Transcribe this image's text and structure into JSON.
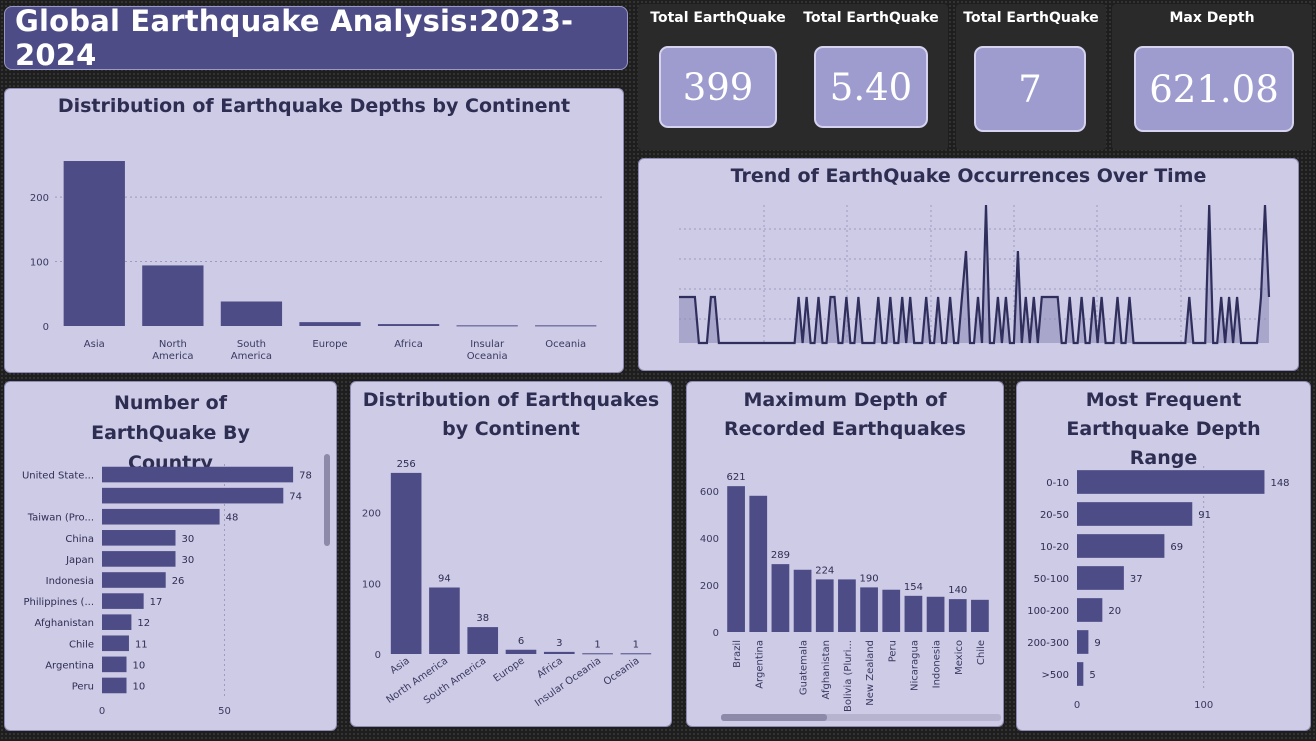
{
  "header": {
    "title": "Global Earthquake Analysis:2023-2024"
  },
  "kpis": [
    {
      "label": "Total EarthQuake",
      "value": "399"
    },
    {
      "label": "Total EarthQuake",
      "value": "5.40"
    },
    {
      "label": "Total EarthQuake",
      "value": "7"
    },
    {
      "label": "Max Depth",
      "value": "621.08"
    }
  ],
  "colors": {
    "bar": "#4d4c86",
    "panel": "#cdcbe6",
    "title": "#2e2d52"
  },
  "chart_data": [
    {
      "id": "depth_by_continent",
      "type": "bar",
      "title": "Distribution of Earthquake Depths by Continent",
      "categories": [
        "Asia",
        "North America",
        "South America",
        "Europe",
        "Africa",
        "Insular Oceania",
        "Oceania"
      ],
      "values": [
        256,
        94,
        38,
        6,
        3,
        1,
        1
      ],
      "ylim": [
        0,
        270
      ],
      "yticks": [
        0,
        100,
        200
      ],
      "grid": true
    },
    {
      "id": "trend_over_time",
      "type": "area",
      "title": "Trend of EarthQuake Occurrences Over Time",
      "values": [
        1,
        1,
        1,
        1,
        1,
        0,
        0,
        0,
        1,
        1,
        0,
        0,
        0,
        0,
        0,
        0,
        0,
        0,
        0,
        0,
        0,
        0,
        0,
        0,
        0,
        0,
        0,
        0,
        0,
        0,
        1,
        0,
        1,
        0,
        0,
        1,
        0,
        0,
        1,
        1,
        0,
        0,
        1,
        0,
        0,
        1,
        0,
        0,
        0,
        0,
        1,
        0,
        0,
        1,
        0,
        0,
        1,
        0,
        1,
        0,
        0,
        0,
        1,
        0,
        0,
        1,
        0,
        0,
        1,
        0,
        0,
        1,
        2,
        0,
        0,
        1,
        0,
        3,
        0,
        0,
        1,
        0,
        1,
        0,
        0,
        2,
        0,
        1,
        0,
        1,
        0,
        1,
        1,
        1,
        1,
        1,
        0,
        0,
        1,
        0,
        0,
        1,
        0,
        0,
        1,
        0,
        1,
        0,
        0,
        0,
        1,
        0,
        0,
        1,
        0,
        0,
        0,
        0,
        0,
        0,
        0,
        0,
        0,
        0,
        0,
        0,
        0,
        0,
        1,
        0,
        0,
        0,
        0,
        3,
        0,
        0,
        1,
        0,
        1,
        0,
        1,
        0,
        0,
        0,
        0,
        0,
        1,
        3,
        1
      ],
      "ylim": [
        0,
        3
      ],
      "grid": true
    },
    {
      "id": "by_country",
      "type": "bar",
      "orientation": "horizontal",
      "title": "Number of EarthQuake By Country",
      "categories": [
        "United State...",
        "",
        "Taiwan (Pro...",
        "China",
        "Japan",
        "Indonesia",
        "Philippines (...",
        "Afghanistan",
        "Chile",
        "Argentina",
        "Peru"
      ],
      "values": [
        78,
        74,
        48,
        30,
        30,
        26,
        17,
        12,
        11,
        10,
        10
      ],
      "xlim": [
        0,
        80
      ],
      "xticks": [
        0,
        50
      ]
    },
    {
      "id": "count_by_continent",
      "type": "bar",
      "title": "Distribution of Earthquakes by Continent",
      "categories": [
        "Asia",
        "North America",
        "South America",
        "Europe",
        "Africa",
        "Insular Oceania",
        "Oceania"
      ],
      "values": [
        256,
        94,
        38,
        6,
        3,
        1,
        1
      ],
      "ylim": [
        0,
        270
      ],
      "yticks": [
        0,
        100,
        200
      ]
    },
    {
      "id": "max_depth",
      "type": "bar",
      "title": "Maximum Depth of Recorded Earthquakes",
      "categories": [
        "Brazil",
        "Argentina",
        "",
        "Guatemala",
        "Afghanistan",
        "Bolivia (Pluri...",
        "New Zealand",
        "Peru",
        "Nicaragua",
        "Indonesia",
        "Mexico",
        "Chile"
      ],
      "values": [
        621,
        580,
        289,
        265,
        224,
        224,
        190,
        180,
        154,
        150,
        140,
        137
      ],
      "value_labels": [
        "621",
        "",
        "289",
        "",
        "224",
        "",
        "190",
        "",
        "154",
        "",
        "140",
        ""
      ],
      "ylim": [
        0,
        660
      ],
      "yticks": [
        0,
        200,
        400,
        600
      ]
    },
    {
      "id": "depth_range",
      "type": "bar",
      "orientation": "horizontal",
      "title": "Most Frequent Earthquake Depth Range",
      "categories": [
        "0-10",
        "20-50",
        "10-20",
        "50-100",
        "100-200",
        "200-300",
        ">500"
      ],
      "values": [
        148,
        91,
        69,
        37,
        20,
        9,
        5
      ],
      "value_labels": [
        "148",
        "91",
        "69",
        "37",
        "20",
        "9",
        "5"
      ],
      "xlim": [
        0,
        150
      ],
      "xticks": [
        0,
        100
      ]
    }
  ]
}
